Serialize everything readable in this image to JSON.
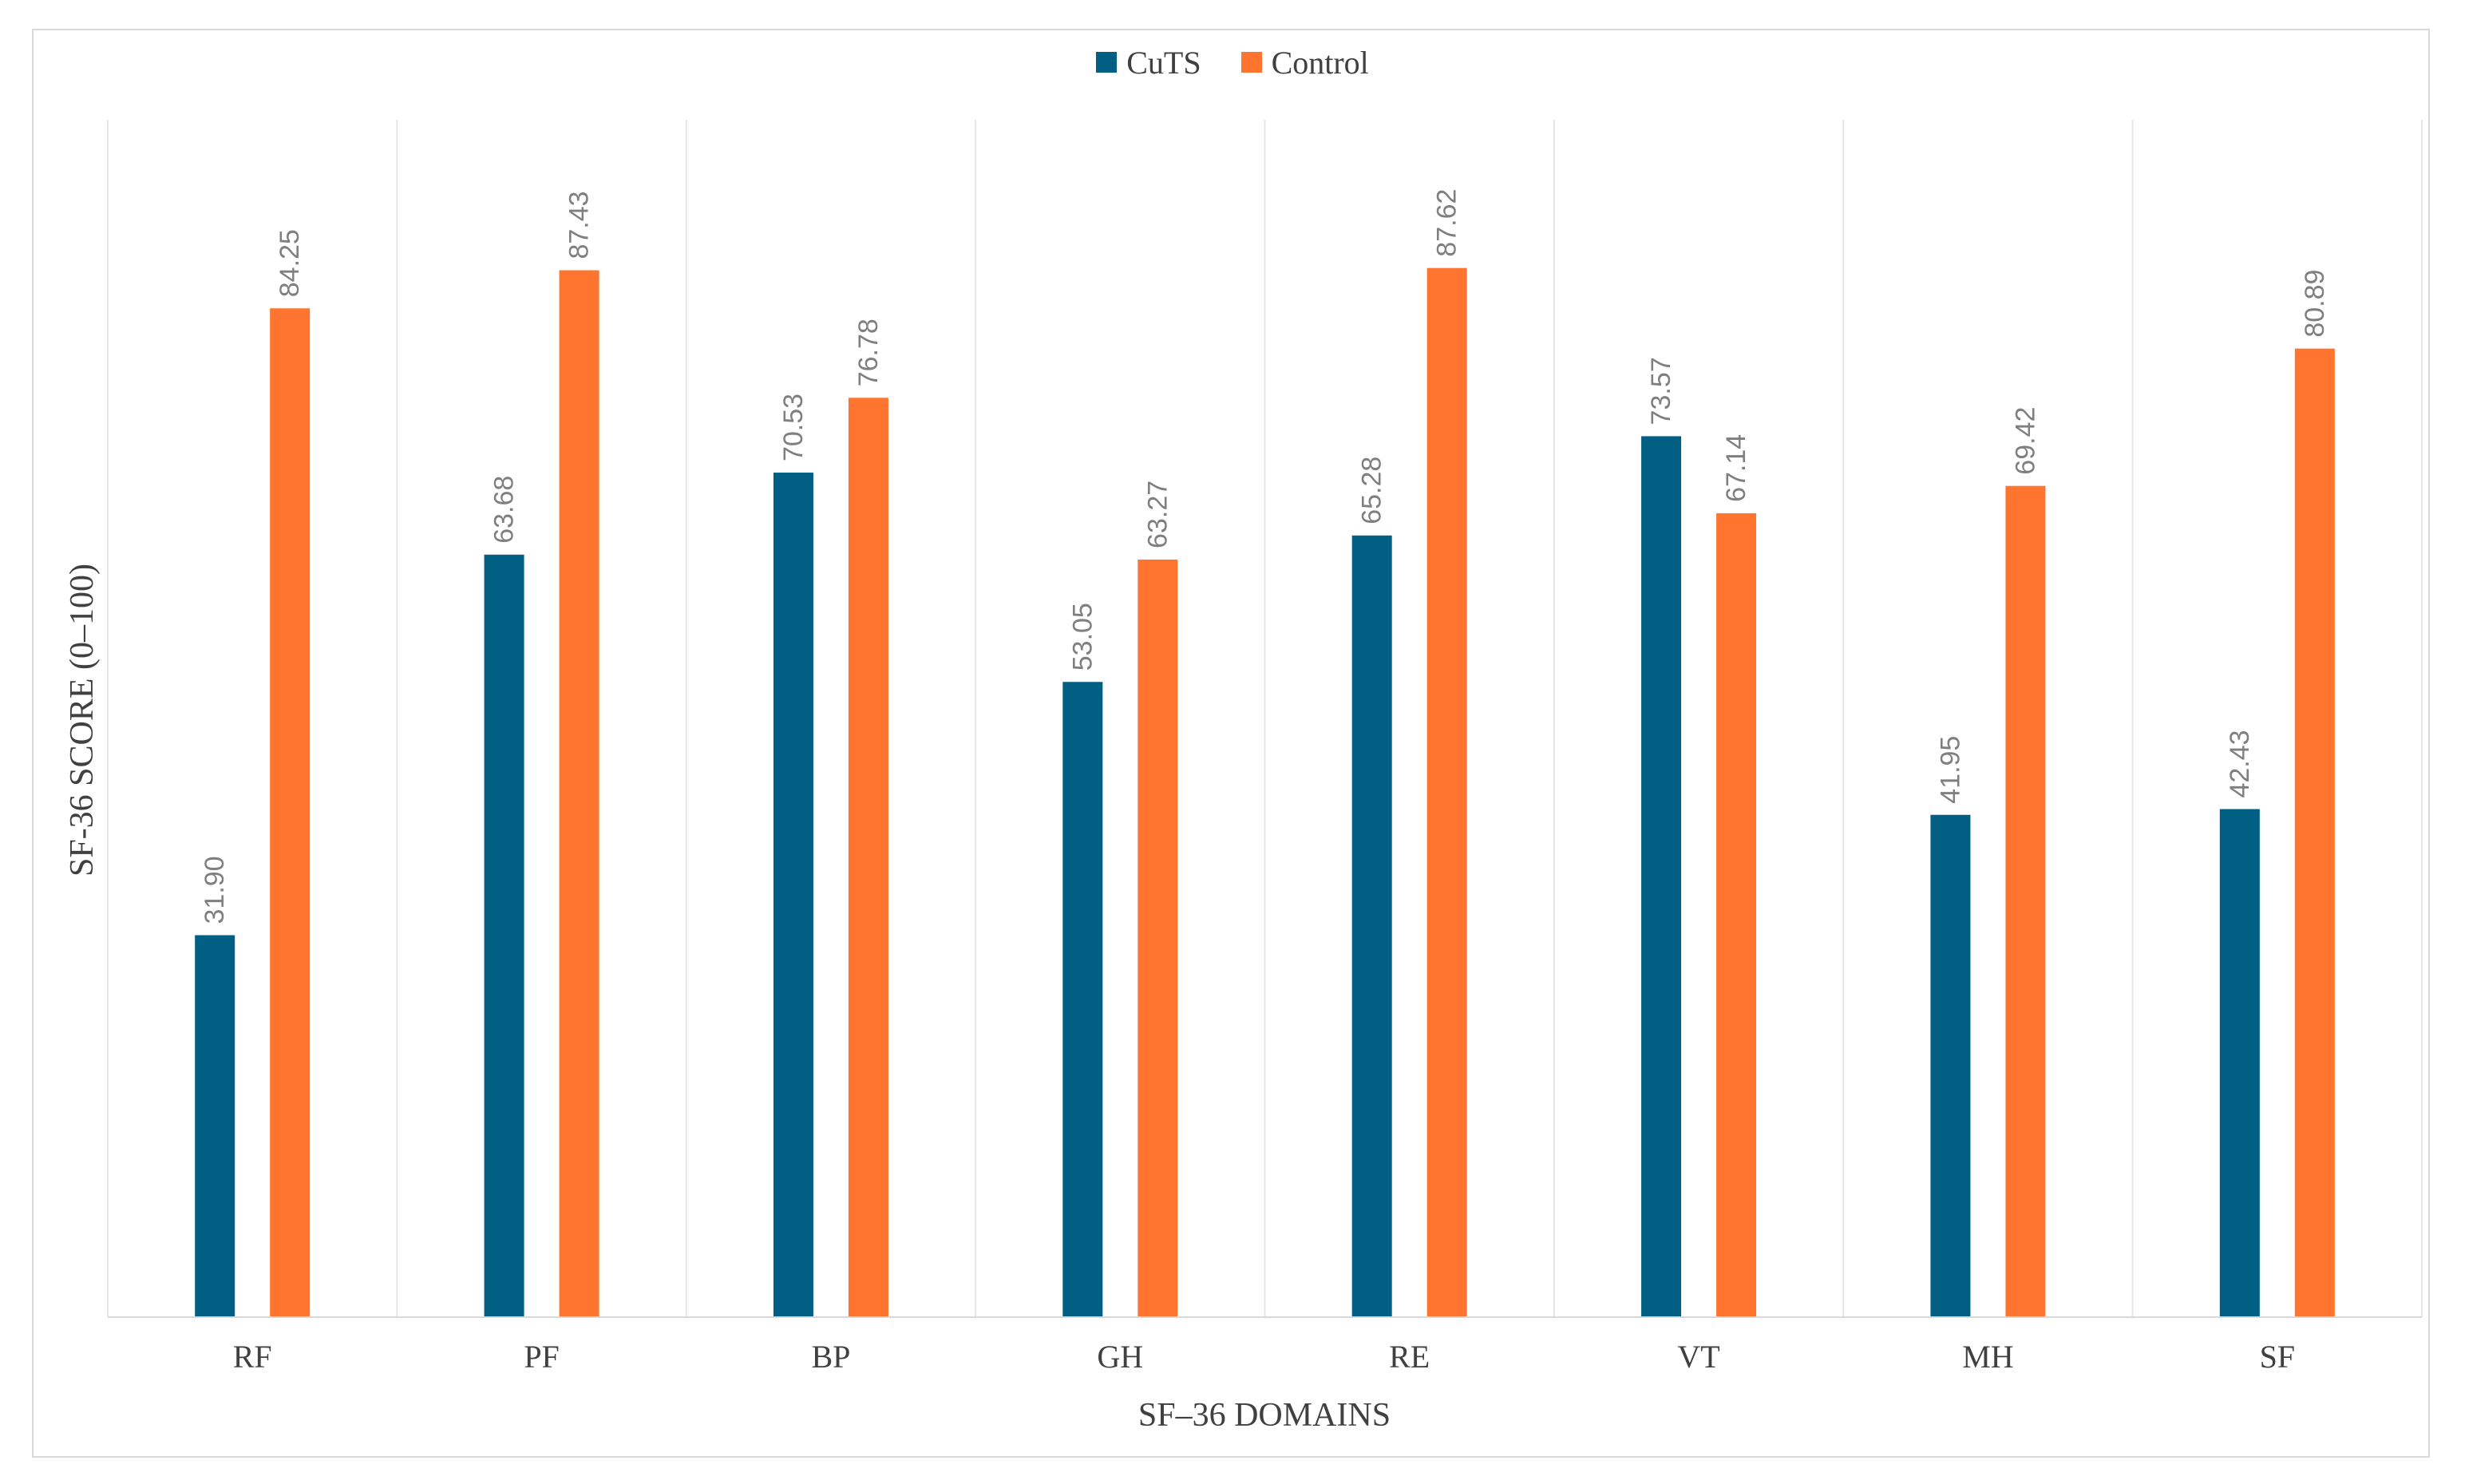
{
  "chart_data": {
    "type": "bar",
    "title": "",
    "xlabel": "SF–36 DOMAINS",
    "ylabel": "SF-36 SCORE (0–100)",
    "ylim": [
      0,
      100
    ],
    "grid": "vertical category separators",
    "legend_position": "top-center",
    "categories": [
      "RF",
      "PF",
      "BP",
      "GH",
      "RE",
      "VT",
      "MH",
      "SF"
    ],
    "series": [
      {
        "name": "CuTS",
        "color": "#005f82",
        "values": [
          31.9,
          63.68,
          70.53,
          53.05,
          65.28,
          73.57,
          41.95,
          42.43
        ],
        "labels": [
          "31.90",
          "63.68",
          "70.53",
          "53.05",
          "65.28",
          "73.57",
          "41.95",
          "42.43"
        ]
      },
      {
        "name": "Control",
        "color": "#ff742e",
        "values": [
          84.25,
          87.43,
          76.78,
          63.27,
          87.62,
          67.14,
          69.42,
          80.89
        ],
        "labels": [
          "84.25",
          "87.43",
          "76.78",
          "63.27",
          "87.62",
          "67.14",
          "69.42",
          "80.89"
        ]
      }
    ]
  }
}
